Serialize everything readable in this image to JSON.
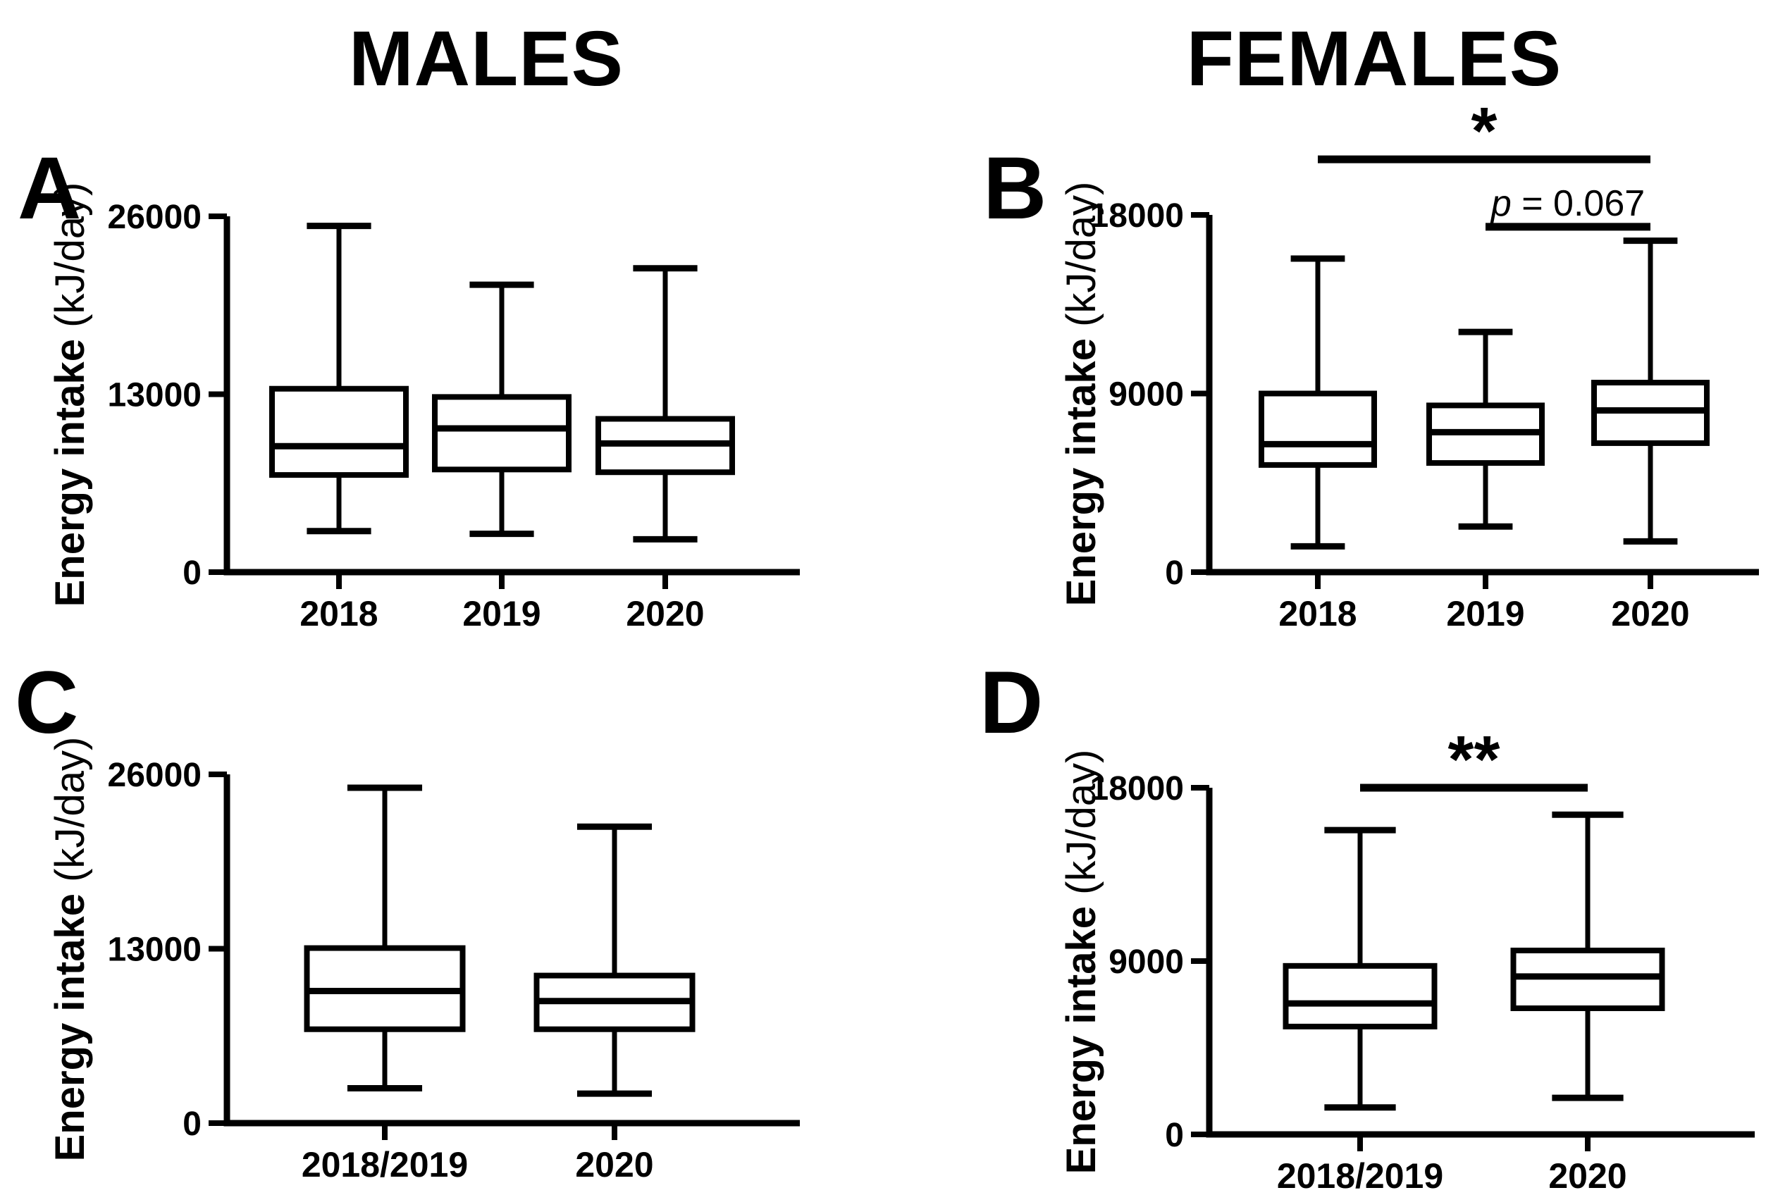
{
  "page": {
    "background": "#ffffff",
    "ink": "#000000"
  },
  "column_titles": {
    "left": "MALES",
    "right": "FEMALES"
  },
  "chart_data": [
    {
      "panel": "A",
      "column_title": "MALES",
      "type": "box",
      "ylabel": "Energy intake (kJ/day)",
      "ylabel_bold": "Energy intake",
      "ylabel_unit": " (kJ/day)",
      "ylim": [
        0,
        26000
      ],
      "yticks": [
        0,
        13000,
        26000
      ],
      "grid": false,
      "categories": [
        "2018",
        "2019",
        "2020"
      ],
      "boxes": [
        {
          "category": "2018",
          "whisker_low": 3000,
          "q1": 7100,
          "median": 9200,
          "q3": 13400,
          "whisker_high": 25300
        },
        {
          "category": "2019",
          "whisker_low": 2800,
          "q1": 7500,
          "median": 10500,
          "q3": 12800,
          "whisker_high": 21000
        },
        {
          "category": "2020",
          "whisker_low": 2400,
          "q1": 7300,
          "median": 9400,
          "q3": 11200,
          "whisker_high": 22200
        }
      ],
      "annotations": []
    },
    {
      "panel": "B",
      "column_title": "FEMALES",
      "type": "box",
      "ylabel": "Energy intake (kJ/day)",
      "ylabel_bold": "Energy intake",
      "ylabel_unit": " (kJ/day)",
      "ylim": [
        0,
        18000
      ],
      "yticks": [
        0,
        9000,
        18000
      ],
      "grid": false,
      "categories": [
        "2018",
        "2019",
        "2020"
      ],
      "boxes": [
        {
          "category": "2018",
          "whisker_low": 1300,
          "q1": 5400,
          "median": 6450,
          "q3": 9000,
          "whisker_high": 15800
        },
        {
          "category": "2019",
          "whisker_low": 2300,
          "q1": 5500,
          "median": 7050,
          "q3": 8400,
          "whisker_high": 12100
        },
        {
          "category": "2020",
          "whisker_low": 1550,
          "q1": 6500,
          "median": 8150,
          "q3": 9550,
          "whisker_high": 16700
        }
      ],
      "annotations": [
        {
          "label": "*",
          "style": "star",
          "from": "2018",
          "to": "2020",
          "y": 20800
        },
        {
          "label": "p = 0.067",
          "style": "ptext",
          "from": "2019",
          "to": "2020",
          "y": 17400,
          "label_parts": [
            {
              "text": "p",
              "italic": true
            },
            {
              "text": " = 0.067",
              "italic": false
            }
          ]
        }
      ]
    },
    {
      "panel": "C",
      "column_title": "MALES",
      "type": "box",
      "ylabel": "Energy intake (kJ/day)",
      "ylabel_bold": "Energy intake",
      "ylabel_unit": " (kJ/day)",
      "ylim": [
        0,
        26000
      ],
      "yticks": [
        0,
        13000,
        26000
      ],
      "grid": false,
      "categories": [
        "2018/2019",
        "2020"
      ],
      "boxes": [
        {
          "category": "2018/2019",
          "whisker_low": 2600,
          "q1": 7000,
          "median": 9850,
          "q3": 13050,
          "whisker_high": 25000
        },
        {
          "category": "2020",
          "whisker_low": 2200,
          "q1": 7000,
          "median": 9100,
          "q3": 11000,
          "whisker_high": 22100
        }
      ],
      "annotations": []
    },
    {
      "panel": "D",
      "column_title": "FEMALES",
      "type": "box",
      "ylabel": "Energy intake (kJ/day)",
      "ylabel_bold": "Energy intake",
      "ylabel_unit": " (kJ/day)",
      "ylim": [
        0,
        18000
      ],
      "yticks": [
        0,
        9000,
        18000
      ],
      "grid": false,
      "categories": [
        "2018/2019",
        "2020"
      ],
      "boxes": [
        {
          "category": "2018/2019",
          "whisker_low": 1400,
          "q1": 5600,
          "median": 6800,
          "q3": 8750,
          "whisker_high": 15800
        },
        {
          "category": "2020",
          "whisker_low": 1900,
          "q1": 6550,
          "median": 8200,
          "q3": 9550,
          "whisker_high": 16600
        }
      ],
      "annotations": [
        {
          "label": "**",
          "style": "star",
          "from": "2018/2019",
          "to": "2020",
          "y": 18000
        }
      ]
    }
  ]
}
